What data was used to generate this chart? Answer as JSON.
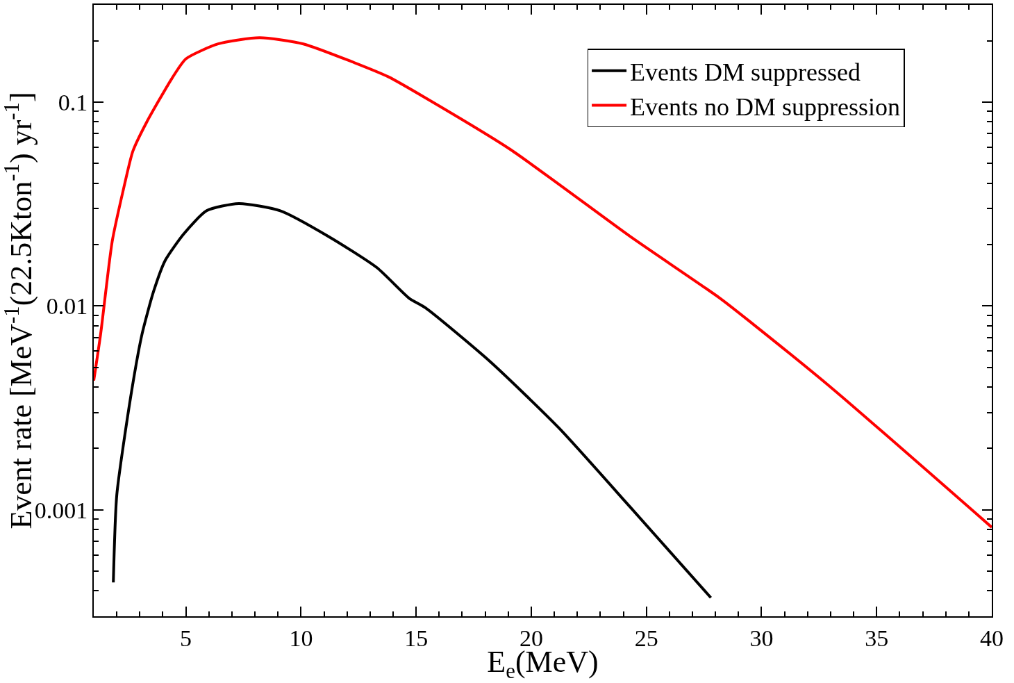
{
  "chart_data": {
    "type": "line",
    "xlabel": "E$_{e}$(MeV)",
    "ylabel": "Event rate [MeV$^{-1}$(22.5Kton$^{-1}$) yr$^{-1}$]",
    "log": "y",
    "grid": false,
    "legend": "top right",
    "line_style": "solid",
    "marker": "none",
    "xlim": [
      1,
      40
    ],
    "ylim": [
      0.0003,
      0.3
    ],
    "xticks": [
      {
        "value": 2,
        "label": null
      },
      {
        "value": 3,
        "label": null
      },
      {
        "value": 4,
        "label": null
      },
      5,
      {
        "value": 6,
        "label": null
      },
      {
        "value": 7,
        "label": null
      },
      {
        "value": 8,
        "label": null
      },
      {
        "value": 9,
        "label": null
      },
      10,
      {
        "value": 11,
        "label": null
      },
      {
        "value": 12,
        "label": null
      },
      {
        "value": 13,
        "label": null
      },
      {
        "value": 14,
        "label": null
      },
      15,
      {
        "value": 16,
        "label": null
      },
      {
        "value": 17,
        "label": null
      },
      {
        "value": 18,
        "label": null
      },
      {
        "value": 19,
        "label": null
      },
      20,
      {
        "value": 21,
        "label": null
      },
      {
        "value": 22,
        "label": null
      },
      {
        "value": 23,
        "label": null
      },
      {
        "value": 24,
        "label": null
      },
      25,
      {
        "value": 26,
        "label": null
      },
      {
        "value": 27,
        "label": null
      },
      {
        "value": 28,
        "label": null
      },
      {
        "value": 29,
        "label": null
      },
      30,
      {
        "value": 31,
        "label": null
      },
      {
        "value": 32,
        "label": null
      },
      {
        "value": 33,
        "label": null
      },
      {
        "value": 34,
        "label": null
      },
      35,
      {
        "value": 36,
        "label": null
      },
      {
        "value": 37,
        "label": null
      },
      {
        "value": 38,
        "label": null
      },
      {
        "value": 39,
        "label": null
      },
      40
    ],
    "yticks": [
      {
        "value": 0.0004,
        "label": null
      },
      {
        "value": 0.0005,
        "label": null
      },
      {
        "value": 0.0006,
        "label": null
      },
      {
        "value": 0.0007,
        "label": null
      },
      {
        "value": 0.0008,
        "label": null
      },
      {
        "value": 0.0009,
        "label": null
      },
      0.001,
      {
        "value": 0.002,
        "label": null
      },
      {
        "value": 0.003,
        "label": null
      },
      {
        "value": 0.004,
        "label": null
      },
      {
        "value": 0.005,
        "label": null
      },
      {
        "value": 0.006,
        "label": null
      },
      {
        "value": 0.007,
        "label": null
      },
      {
        "value": 0.008,
        "label": null
      },
      {
        "value": 0.009,
        "label": null
      },
      0.01,
      {
        "value": 0.02,
        "label": null
      },
      {
        "value": 0.03,
        "label": null
      },
      {
        "value": 0.04,
        "label": null
      },
      {
        "value": 0.05,
        "label": null
      },
      {
        "value": 0.06,
        "label": null
      },
      {
        "value": 0.07,
        "label": null
      },
      {
        "value": 0.08,
        "label": null
      },
      {
        "value": 0.09,
        "label": null
      },
      0.1,
      {
        "value": 0.2,
        "label": null
      }
    ],
    "series": [
      {
        "name": "Events DM suppressed",
        "color": "#000000",
        "x": [
          1.85,
          2.0,
          2.6,
          3.1,
          3.6,
          4.1,
          4.9,
          5.9,
          7.3,
          9.1,
          11.2,
          13.3,
          14.7,
          15.4,
          18.2,
          21.2,
          24.3,
          27.8
        ],
        "values": [
          0.00044,
          0.00118,
          0.00356,
          0.0073,
          0.0118,
          0.0167,
          0.0225,
          0.0293,
          0.0318,
          0.0293,
          0.0219,
          0.0154,
          0.0109,
          0.0098,
          0.00535,
          0.00252,
          0.00103,
          0.00037
        ]
      },
      {
        "name": "Events no DM suppression",
        "color": "#ff0000",
        "x": [
          1.0,
          1.3,
          1.8,
          2.3,
          2.7,
          3.3,
          4.4,
          5.0,
          6.4,
          8.2,
          10.1,
          12.2,
          13.8,
          15.4,
          19.1,
          24.3,
          28.2,
          29.6,
          33.1,
          40.0
        ],
        "values": [
          0.0043,
          0.0073,
          0.0207,
          0.0378,
          0.0575,
          0.0798,
          0.131,
          0.163,
          0.193,
          0.207,
          0.193,
          0.158,
          0.133,
          0.105,
          0.0585,
          0.0219,
          0.0109,
          0.0082,
          0.00391,
          0.00082
        ]
      }
    ]
  }
}
